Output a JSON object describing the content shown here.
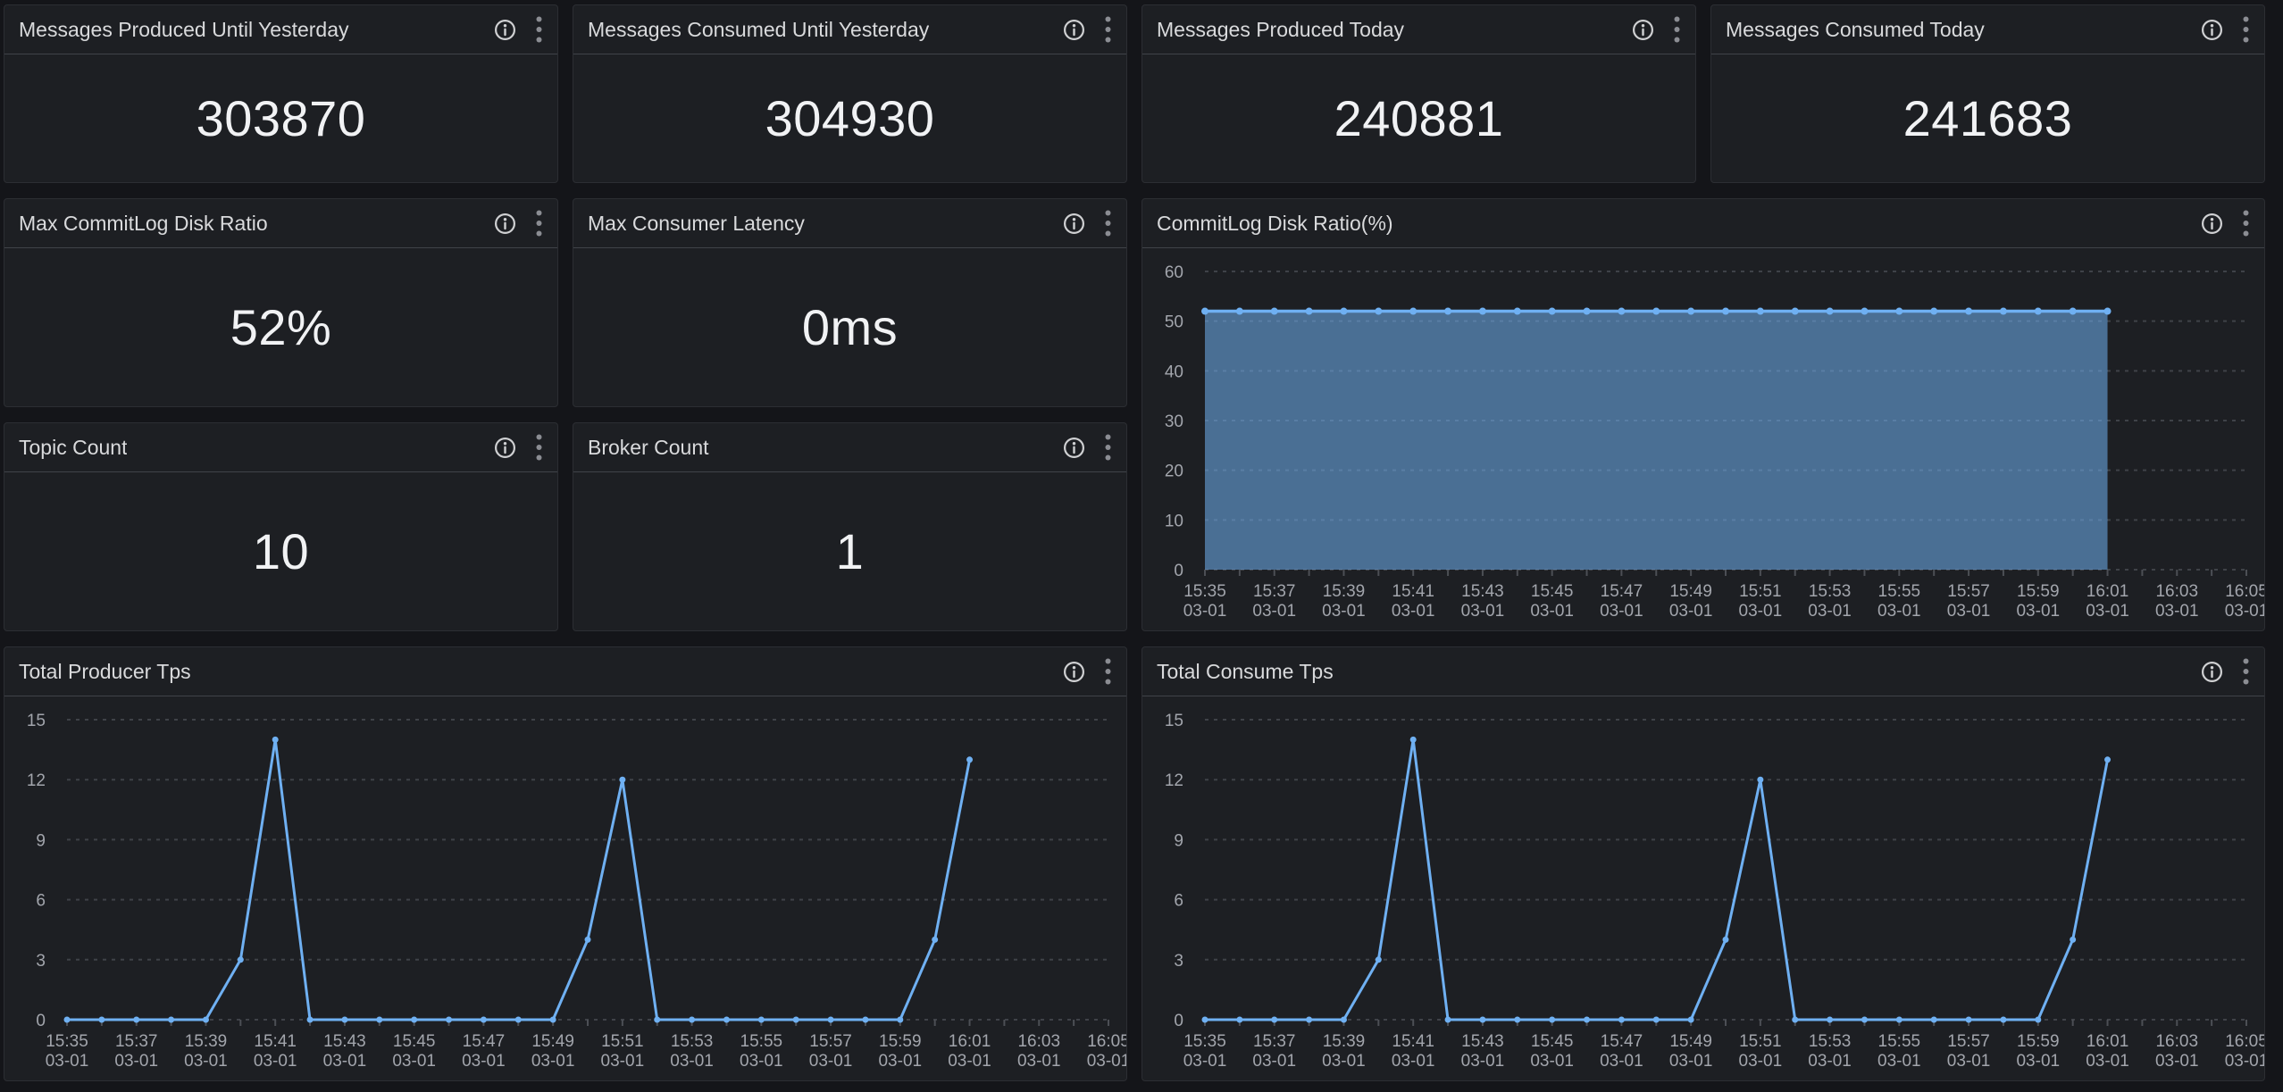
{
  "colors": {
    "page_bg": "#141519",
    "panel_bg": "#1d1f23",
    "panel_border": "#2c2e33",
    "header_divider": "#404349",
    "title_text": "#d9dadc",
    "stat_value_text": "#f1f2f4",
    "axis_label": "#a2a5ac",
    "gridline": "#3f4248",
    "series_blue": "#6fb0f2"
  },
  "icons": {
    "info": "info-circle",
    "menu": "vertical-kebab-dots"
  },
  "panels": {
    "stats": [
      {
        "id": "messages-produced-until-yesterday",
        "title": "Messages Produced Until Yesterday",
        "value": "303870"
      },
      {
        "id": "messages-consumed-until-yesterday",
        "title": "Messages Consumed Until Yesterday",
        "value": "304930"
      },
      {
        "id": "messages-produced-today",
        "title": "Messages Produced Today",
        "value": "240881"
      },
      {
        "id": "messages-consumed-today",
        "title": "Messages Consumed Today",
        "value": "241683"
      },
      {
        "id": "max-commitlog-disk-ratio",
        "title": "Max CommitLog Disk Ratio",
        "value": "52%"
      },
      {
        "id": "max-consumer-latency",
        "title": "Max Consumer Latency",
        "value": "0ms"
      },
      {
        "id": "topic-count",
        "title": "Topic Count",
        "value": "10"
      },
      {
        "id": "broker-count",
        "title": "Broker Count",
        "value": "1"
      }
    ]
  },
  "chart_data": [
    {
      "id": "commitlog-disk-ratio",
      "type": "area",
      "title": "CommitLog Disk Ratio(%)",
      "xlabel": "",
      "ylabel": "",
      "ylim": [
        0,
        60
      ],
      "yticks": [
        0,
        10,
        20,
        30,
        40,
        50,
        60
      ],
      "grid": "dashed",
      "legend": "none",
      "x_axis_labels": [
        "15:35",
        "15:37",
        "15:39",
        "15:41",
        "15:43",
        "15:45",
        "15:47",
        "15:49",
        "15:51",
        "15:53",
        "15:55",
        "15:57",
        "15:59",
        "16:01",
        "16:03",
        "16:05"
      ],
      "x_axis_date": "03-01",
      "x": [
        "15:35",
        "15:36",
        "15:37",
        "15:38",
        "15:39",
        "15:40",
        "15:41",
        "15:42",
        "15:43",
        "15:44",
        "15:45",
        "15:46",
        "15:47",
        "15:48",
        "15:49",
        "15:50",
        "15:51",
        "15:52",
        "15:53",
        "15:54",
        "15:55",
        "15:56",
        "15:57",
        "15:58",
        "15:59",
        "16:00",
        "16:01"
      ],
      "values": [
        52,
        52,
        52,
        52,
        52,
        52,
        52,
        52,
        52,
        52,
        52,
        52,
        52,
        52,
        52,
        52,
        52,
        52,
        52,
        52,
        52,
        52,
        52,
        52,
        52,
        52,
        52
      ],
      "color": "#6fb0f2",
      "fill_opacity": 0.55,
      "line_width": 3.5,
      "dot_radius": 4
    },
    {
      "id": "total-producer-tps",
      "type": "line",
      "title": "Total Producer Tps",
      "xlabel": "",
      "ylabel": "",
      "ylim": [
        0,
        15
      ],
      "yticks": [
        0,
        3,
        6,
        9,
        12,
        15
      ],
      "grid": "dashed",
      "legend": "none",
      "x_axis_labels": [
        "15:35",
        "15:37",
        "15:39",
        "15:41",
        "15:43",
        "15:45",
        "15:47",
        "15:49",
        "15:51",
        "15:53",
        "15:55",
        "15:57",
        "15:59",
        "16:01",
        "16:03",
        "16:05"
      ],
      "x_axis_date": "03-01",
      "x": [
        "15:35",
        "15:36",
        "15:37",
        "15:38",
        "15:39",
        "15:40",
        "15:41",
        "15:42",
        "15:43",
        "15:44",
        "15:45",
        "15:46",
        "15:47",
        "15:48",
        "15:49",
        "15:50",
        "15:51",
        "15:52",
        "15:53",
        "15:54",
        "15:55",
        "15:56",
        "15:57",
        "15:58",
        "15:59",
        "16:00",
        "16:01"
      ],
      "values": [
        0,
        0,
        0,
        0,
        0,
        3,
        14,
        0,
        0,
        0,
        0,
        0,
        0,
        0,
        0,
        4,
        12,
        0,
        0,
        0,
        0,
        0,
        0,
        0,
        0,
        4,
        13
      ],
      "color": "#6fb0f2",
      "fill_opacity": 0,
      "line_width": 3,
      "dot_radius": 3.5
    },
    {
      "id": "total-consume-tps",
      "type": "line",
      "title": "Total Consume Tps",
      "xlabel": "",
      "ylabel": "",
      "ylim": [
        0,
        15
      ],
      "yticks": [
        0,
        3,
        6,
        9,
        12,
        15
      ],
      "grid": "dashed",
      "legend": "none",
      "x_axis_labels": [
        "15:35",
        "15:37",
        "15:39",
        "15:41",
        "15:43",
        "15:45",
        "15:47",
        "15:49",
        "15:51",
        "15:53",
        "15:55",
        "15:57",
        "15:59",
        "16:01",
        "16:03",
        "16:05"
      ],
      "x_axis_date": "03-01",
      "x": [
        "15:35",
        "15:36",
        "15:37",
        "15:38",
        "15:39",
        "15:40",
        "15:41",
        "15:42",
        "15:43",
        "15:44",
        "15:45",
        "15:46",
        "15:47",
        "15:48",
        "15:49",
        "15:50",
        "15:51",
        "15:52",
        "15:53",
        "15:54",
        "15:55",
        "15:56",
        "15:57",
        "15:58",
        "15:59",
        "16:00",
        "16:01"
      ],
      "values": [
        0,
        0,
        0,
        0,
        0,
        3,
        14,
        0,
        0,
        0,
        0,
        0,
        0,
        0,
        0,
        4,
        12,
        0,
        0,
        0,
        0,
        0,
        0,
        0,
        0,
        4,
        13
      ],
      "color": "#6fb0f2",
      "fill_opacity": 0,
      "line_width": 3,
      "dot_radius": 3.5
    }
  ]
}
